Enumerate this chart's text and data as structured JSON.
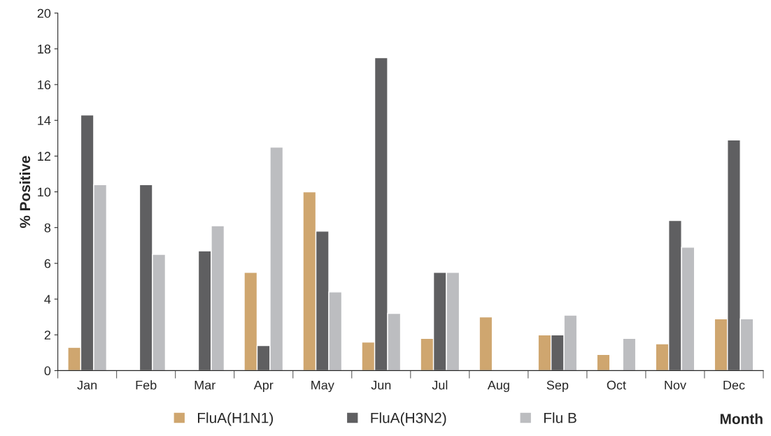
{
  "chart_data": {
    "type": "bar",
    "xlabel": "Month",
    "ylabel": "% Positive",
    "categories": [
      "Jan",
      "Feb",
      "Mar",
      "Apr",
      "May",
      "Jun",
      "Jul",
      "Aug",
      "Sep",
      "Oct",
      "Nov",
      "Dec"
    ],
    "series": [
      {
        "name": "FluA(H1N1)",
        "color": "#cfa66f",
        "values": [
          1.3,
          null,
          null,
          5.5,
          10.0,
          1.6,
          1.8,
          3.0,
          2.0,
          0.9,
          1.5,
          2.9
        ]
      },
      {
        "name": "FluA(H3N2)",
        "color": "#5f5f61",
        "values": [
          14.3,
          10.4,
          6.7,
          1.4,
          7.8,
          17.5,
          5.5,
          null,
          2.0,
          null,
          8.4,
          12.9
        ]
      },
      {
        "name": "Flu B",
        "color": "#bcbdc0",
        "values": [
          10.4,
          6.5,
          8.1,
          12.5,
          4.4,
          3.2,
          5.5,
          null,
          3.1,
          1.8,
          6.9,
          2.9
        ]
      }
    ],
    "ylim": [
      0,
      20
    ],
    "yticks": [
      0,
      2,
      4,
      6,
      8,
      10,
      12,
      14,
      16,
      18,
      20
    ],
    "grid": false,
    "legend": "bottom"
  }
}
